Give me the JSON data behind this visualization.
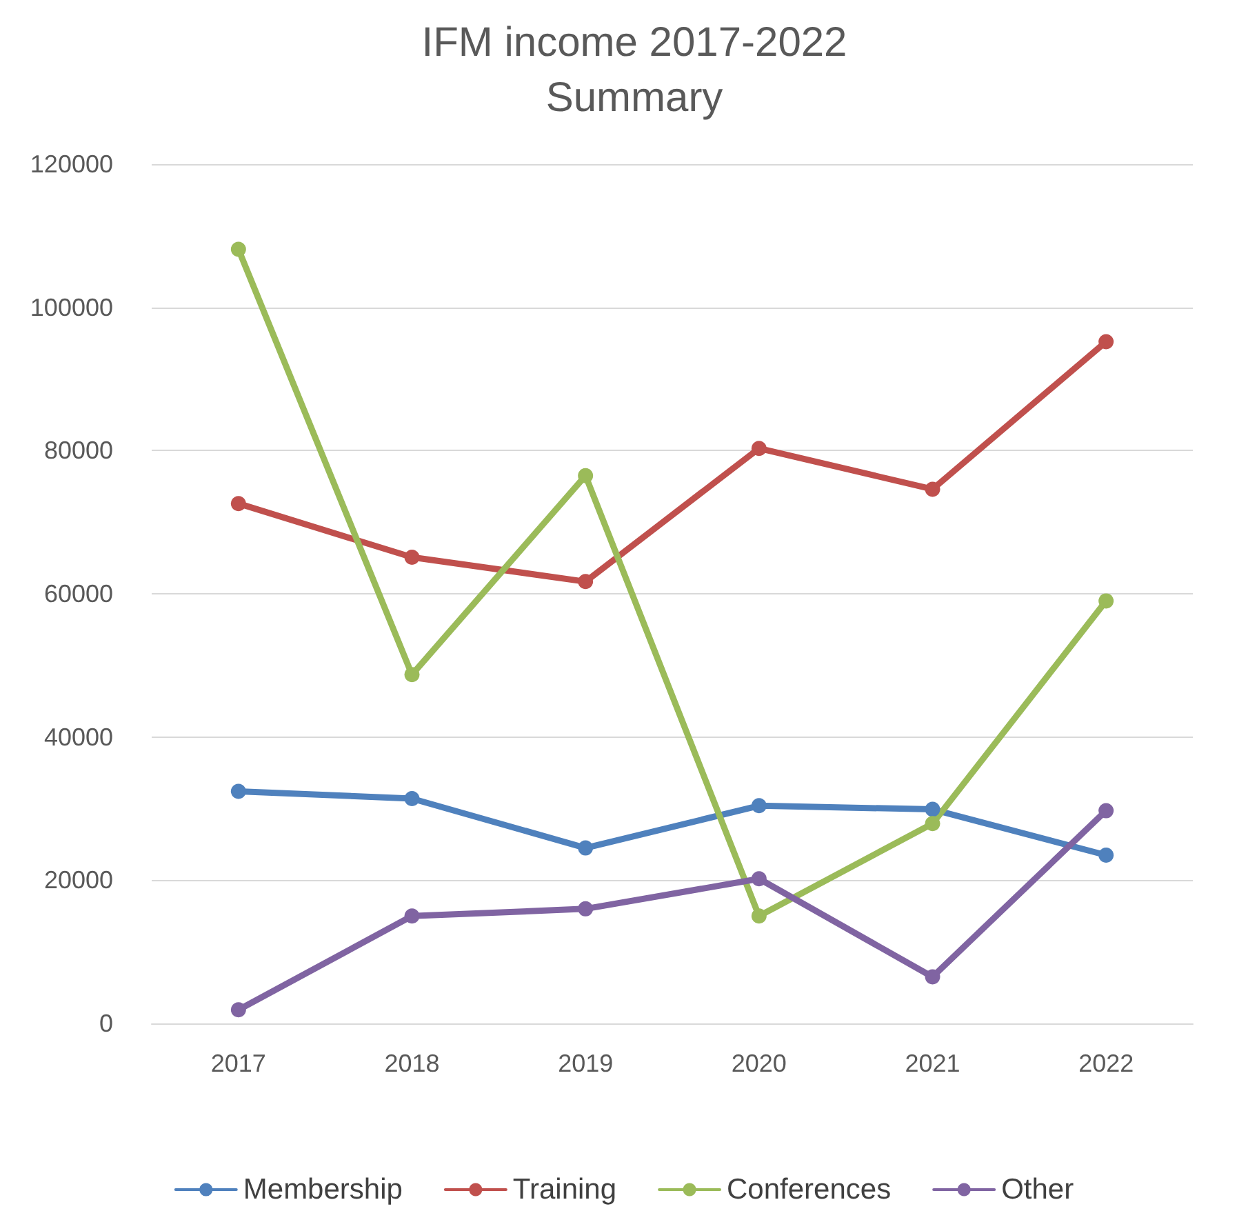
{
  "chart_data": {
    "type": "line",
    "title": "IFM income 2017-2022\nSummary",
    "categories": [
      "2017",
      "2018",
      "2019",
      "2020",
      "2021",
      "2022"
    ],
    "series": [
      {
        "name": "Membership",
        "color": "#4f81bd",
        "values": [
          32400,
          31400,
          24500,
          30400,
          29900,
          23500
        ]
      },
      {
        "name": "Training",
        "color": "#c0504d",
        "values": [
          72600,
          65100,
          61700,
          80300,
          74600,
          95200
        ]
      },
      {
        "name": "Conferences",
        "color": "#9bbb59",
        "values": [
          108100,
          48700,
          76500,
          15000,
          27900,
          59000
        ]
      },
      {
        "name": "Other",
        "color": "#8064a2",
        "values": [
          1900,
          15000,
          16000,
          20200,
          6500,
          29700
        ]
      }
    ],
    "ylim": [
      0,
      120000
    ],
    "yticks": [
      0,
      20000,
      40000,
      60000,
      80000,
      100000,
      120000
    ],
    "grid": "y",
    "legend": "bottom",
    "marker": "circle",
    "line_style": "solid"
  }
}
